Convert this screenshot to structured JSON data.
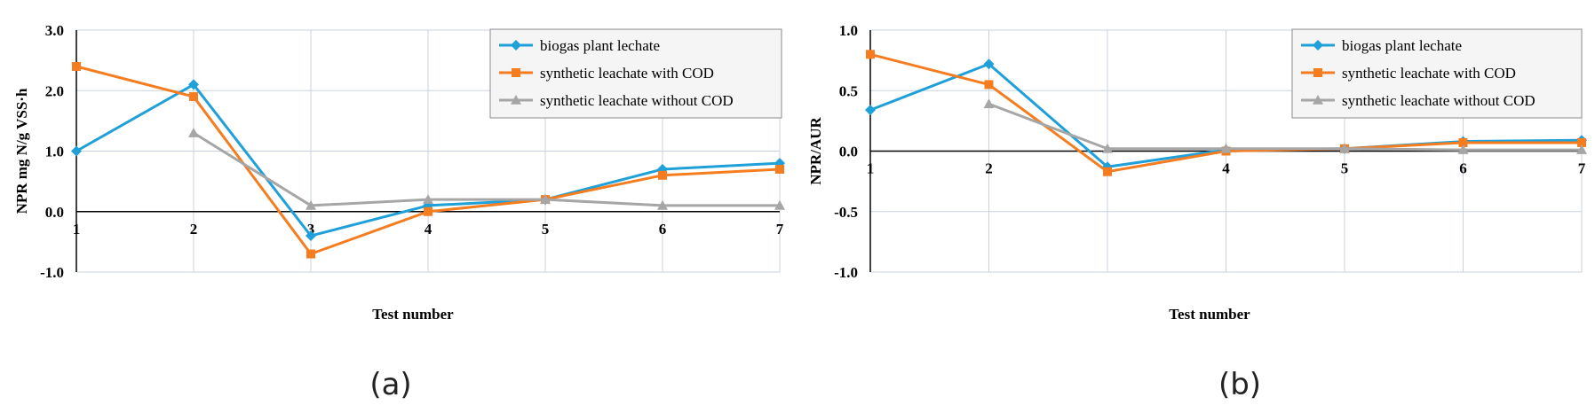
{
  "chart_data": [
    {
      "type": "line",
      "panel_label": "(a)",
      "xlabel": "Test number",
      "ylabel": "NPR mg N/g VSS·h",
      "x": [
        1,
        2,
        3,
        4,
        5,
        6,
        7
      ],
      "xticks": [
        "1",
        "2",
        "3",
        "4",
        "5",
        "6",
        "7"
      ],
      "ylim": [
        -1.0,
        3.0
      ],
      "yticks": [
        "-1.0",
        "0.0",
        "1.0",
        "2.0",
        "3.0"
      ],
      "grid": true,
      "legend_position": "top-right",
      "series": [
        {
          "name": "biogas plant lechate",
          "color": "#1fa0d8",
          "marker": "diamond",
          "values": [
            1.0,
            2.1,
            -0.4,
            0.1,
            0.2,
            0.7,
            0.8
          ]
        },
        {
          "name": "synthetic leachate with COD",
          "color": "#f57c1f",
          "marker": "square",
          "values": [
            2.4,
            1.9,
            -0.7,
            0.0,
            0.2,
            0.6,
            0.7
          ]
        },
        {
          "name": "synthetic leachate without COD",
          "color": "#a6a6a6",
          "marker": "triangle",
          "values": [
            null,
            1.3,
            0.1,
            0.2,
            0.2,
            0.1,
            0.1
          ]
        }
      ]
    },
    {
      "type": "line",
      "panel_label": "(b)",
      "xlabel": "Test number",
      "ylabel": "NPR/AUR",
      "x": [
        1,
        2,
        3,
        4,
        5,
        6,
        7
      ],
      "xticks": [
        "1",
        "2",
        "3",
        "4",
        "5",
        "6",
        "7"
      ],
      "ylim": [
        -1.0,
        1.0
      ],
      "yticks": [
        "-1.0",
        "-0.5",
        "0.0",
        "0.5",
        "1.0"
      ],
      "grid": true,
      "legend_position": "top-right",
      "series": [
        {
          "name": "biogas plant lechate",
          "color": "#1fa0d8",
          "marker": "diamond",
          "values": [
            0.34,
            0.72,
            -0.13,
            0.01,
            0.02,
            0.08,
            0.09
          ]
        },
        {
          "name": "synthetic leachate with COD",
          "color": "#f57c1f",
          "marker": "square",
          "values": [
            0.8,
            0.55,
            -0.17,
            0.0,
            0.02,
            0.07,
            0.07
          ]
        },
        {
          "name": "synthetic leachate without COD",
          "color": "#a6a6a6",
          "marker": "triangle",
          "values": [
            null,
            0.39,
            0.02,
            0.02,
            0.02,
            0.01,
            0.01
          ]
        }
      ]
    }
  ]
}
